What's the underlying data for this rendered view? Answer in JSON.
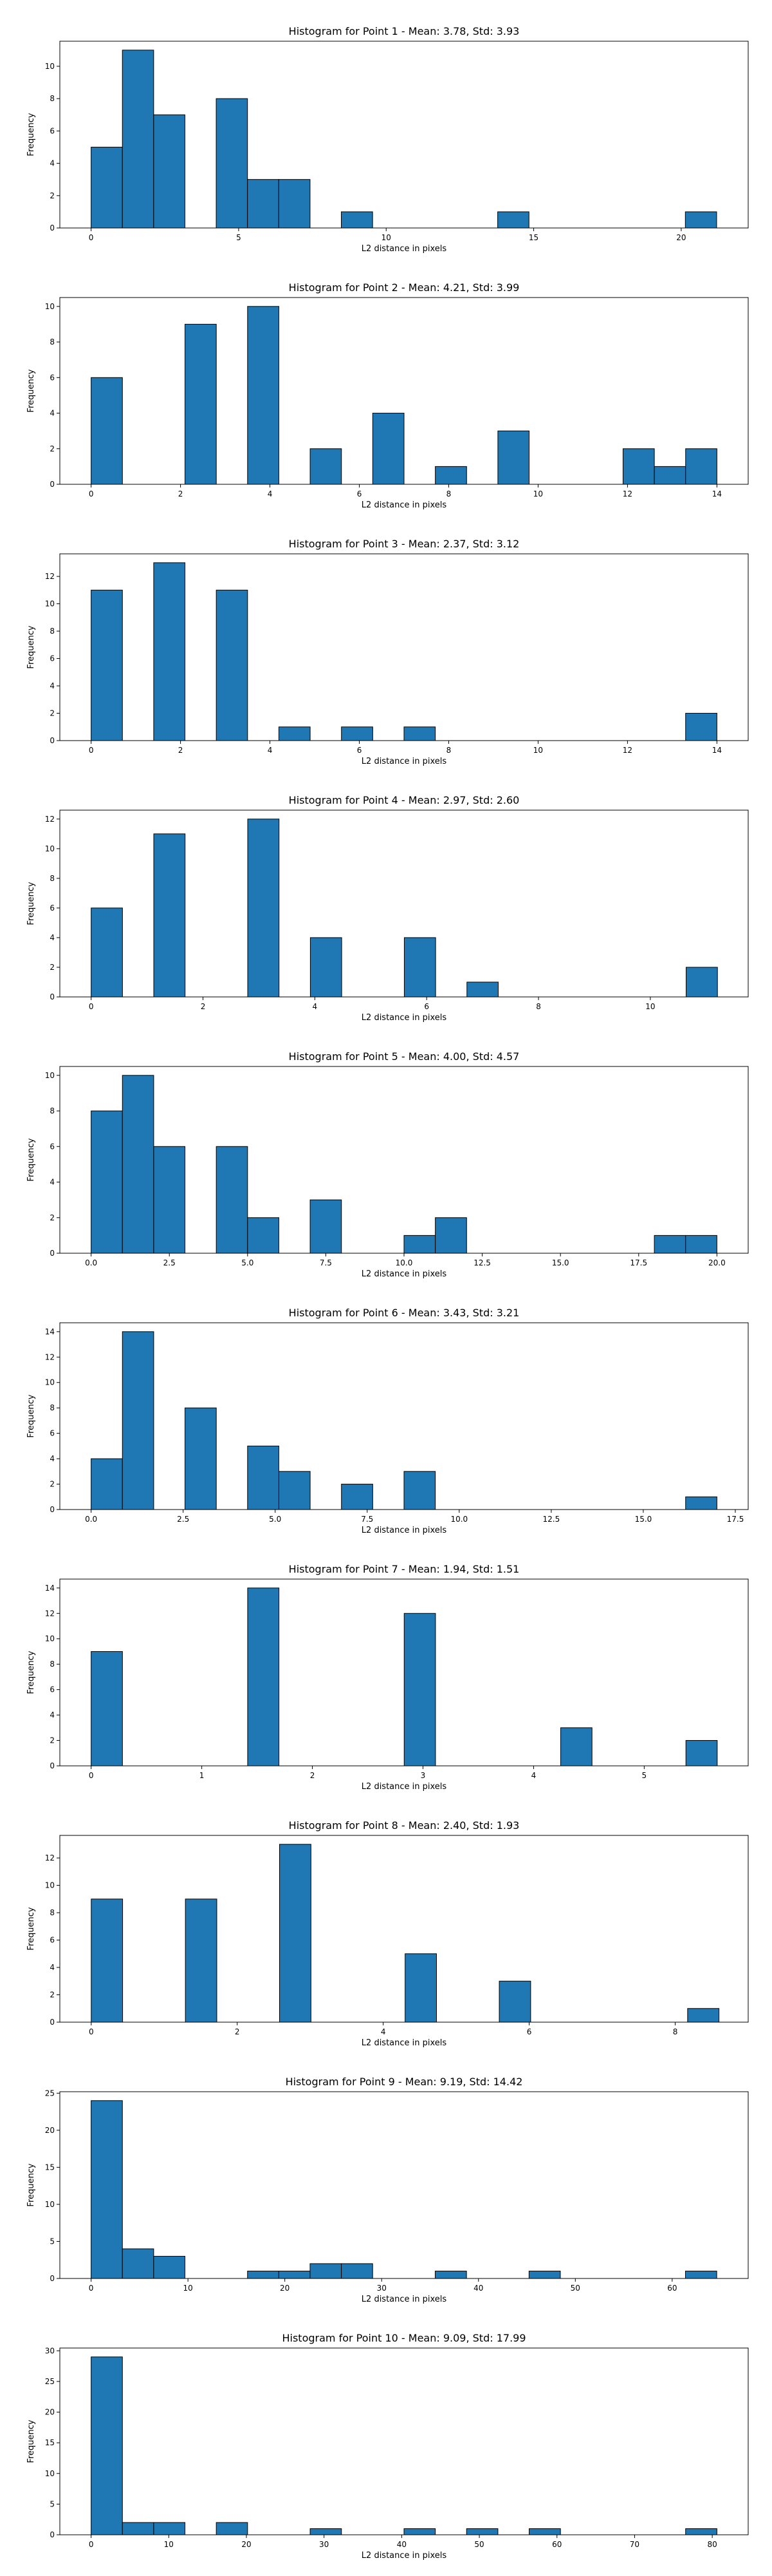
{
  "chart_data": [
    {
      "type": "bar",
      "title": "Histogram for Point 1 - Mean: 3.78, Std: 3.93",
      "xlabel": "L2 distance in pixels",
      "ylabel": "Frequency",
      "xlim": [
        -1.06,
        22.27
      ],
      "ylim": [
        0,
        11.55
      ],
      "xticks": [
        0,
        5,
        10,
        15,
        20
      ],
      "yticks": [
        0,
        2,
        4,
        6,
        8,
        10
      ],
      "bin_edges": [
        0,
        1.06,
        2.12,
        3.18,
        4.24,
        5.3,
        6.36,
        7.42,
        8.48,
        9.54,
        10.6,
        11.66,
        12.72,
        13.78,
        14.84,
        15.9,
        16.96,
        18.02,
        19.08,
        20.14,
        21.2
      ],
      "counts": [
        5,
        11,
        7,
        0,
        8,
        3,
        3,
        0,
        1,
        0,
        0,
        0,
        0,
        1,
        0,
        0,
        0,
        0,
        0,
        1
      ]
    },
    {
      "type": "bar",
      "title": "Histogram for Point 2 - Mean: 4.21, Std: 3.99",
      "xlabel": "L2 distance in pixels",
      "ylabel": "Frequency",
      "xlim": [
        -0.7,
        14.7
      ],
      "ylim": [
        0,
        10.5
      ],
      "xticks": [
        0,
        2,
        4,
        6,
        8,
        10,
        12,
        14
      ],
      "yticks": [
        0,
        2,
        4,
        6,
        8,
        10
      ],
      "bin_edges": [
        0,
        0.7,
        1.4,
        2.1,
        2.8,
        3.5,
        4.2,
        4.9,
        5.6,
        6.3,
        7.0,
        7.7,
        8.4,
        9.1,
        9.8,
        10.5,
        11.2,
        11.9,
        12.6,
        13.3,
        14.0
      ],
      "counts": [
        6,
        0,
        0,
        9,
        0,
        10,
        0,
        2,
        0,
        4,
        0,
        1,
        0,
        3,
        0,
        0,
        0,
        2,
        1,
        2
      ]
    },
    {
      "type": "bar",
      "title": "Histogram for Point 3 - Mean: 2.37, Std: 3.12",
      "xlabel": "L2 distance in pixels",
      "ylabel": "Frequency",
      "xlim": [
        -0.7,
        14.7
      ],
      "ylim": [
        0,
        13.65
      ],
      "xticks": [
        0,
        2,
        4,
        6,
        8,
        10,
        12,
        14
      ],
      "yticks": [
        0,
        2,
        4,
        6,
        8,
        10,
        12
      ],
      "bin_edges": [
        0,
        0.7,
        1.4,
        2.1,
        2.8,
        3.5,
        4.2,
        4.9,
        5.6,
        6.3,
        7.0,
        7.7,
        8.4,
        9.1,
        9.8,
        10.5,
        11.2,
        11.9,
        12.6,
        13.3,
        14.0
      ],
      "counts": [
        11,
        0,
        13,
        0,
        11,
        0,
        1,
        0,
        1,
        0,
        1,
        0,
        0,
        0,
        0,
        0,
        0,
        0,
        0,
        2
      ]
    },
    {
      "type": "bar",
      "title": "Histogram for Point 4 - Mean: 2.97, Std: 2.60",
      "xlabel": "L2 distance in pixels",
      "ylabel": "Frequency",
      "xlim": [
        -0.56,
        11.75
      ],
      "ylim": [
        0,
        12.6
      ],
      "xticks": [
        0,
        2,
        4,
        6,
        8,
        10
      ],
      "yticks": [
        0,
        2,
        4,
        6,
        8,
        10,
        12
      ],
      "bin_edges": [
        0,
        0.56,
        1.12,
        1.68,
        2.24,
        2.8,
        3.36,
        3.92,
        4.48,
        5.04,
        5.6,
        6.16,
        6.72,
        7.28,
        7.84,
        8.4,
        8.96,
        9.52,
        10.08,
        10.64,
        11.2
      ],
      "counts": [
        6,
        0,
        11,
        0,
        0,
        12,
        0,
        4,
        0,
        0,
        4,
        0,
        1,
        0,
        0,
        0,
        0,
        0,
        0,
        2
      ]
    },
    {
      "type": "bar",
      "title": "Histogram for Point 5 - Mean: 4.00, Std: 4.57",
      "xlabel": "L2 distance in pixels",
      "ylabel": "Frequency",
      "xlim": [
        -1.0,
        21.0
      ],
      "ylim": [
        0,
        10.5
      ],
      "xticks": [
        "0.0",
        "2.5",
        "5.0",
        "7.5",
        "10.0",
        "12.5",
        "15.0",
        "17.5",
        "20.0"
      ],
      "yticks": [
        0,
        2,
        4,
        6,
        8,
        10
      ],
      "bin_edges": [
        0,
        1,
        2,
        3,
        4,
        5,
        6,
        7,
        8,
        9,
        10,
        11,
        12,
        13,
        14,
        15,
        16,
        17,
        18,
        19,
        20
      ],
      "counts": [
        8,
        10,
        6,
        0,
        6,
        2,
        0,
        3,
        0,
        0,
        1,
        2,
        0,
        0,
        0,
        0,
        0,
        0,
        1,
        1
      ]
    },
    {
      "type": "bar",
      "title": "Histogram for Point 6 - Mean: 3.43, Std: 3.21",
      "xlabel": "L2 distance in pixels",
      "ylabel": "Frequency",
      "xlim": [
        -0.85,
        17.85
      ],
      "ylim": [
        0,
        14.7
      ],
      "xticks": [
        "0.0",
        "2.5",
        "5.0",
        "7.5",
        "10.0",
        "12.5",
        "15.0",
        "17.5"
      ],
      "yticks": [
        0,
        2,
        4,
        6,
        8,
        10,
        12,
        14
      ],
      "bin_edges": [
        0,
        0.85,
        1.7,
        2.55,
        3.4,
        4.25,
        5.1,
        5.95,
        6.8,
        7.65,
        8.5,
        9.35,
        10.2,
        11.05,
        11.9,
        12.75,
        13.6,
        14.45,
        15.3,
        16.15,
        17.0
      ],
      "counts": [
        4,
        14,
        0,
        8,
        0,
        5,
        3,
        0,
        2,
        0,
        3,
        0,
        0,
        0,
        0,
        0,
        0,
        0,
        0,
        1
      ]
    },
    {
      "type": "bar",
      "title": "Histogram for Point 7 - Mean: 1.94, Std: 1.51",
      "xlabel": "L2 distance in pixels",
      "ylabel": "Frequency",
      "xlim": [
        -0.283,
        5.94
      ],
      "ylim": [
        0,
        14.7
      ],
      "xticks": [
        0,
        1,
        2,
        3,
        4,
        5
      ],
      "yticks": [
        0,
        2,
        4,
        6,
        8,
        10,
        12,
        14
      ],
      "bin_edges": [
        0,
        0.283,
        0.566,
        0.849,
        1.132,
        1.415,
        1.698,
        1.981,
        2.264,
        2.547,
        2.83,
        3.113,
        3.396,
        3.679,
        3.962,
        4.245,
        4.528,
        4.811,
        5.094,
        5.377,
        5.66
      ],
      "counts": [
        9,
        0,
        0,
        0,
        0,
        14,
        0,
        0,
        0,
        0,
        12,
        0,
        0,
        0,
        0,
        3,
        0,
        0,
        0,
        2
      ]
    },
    {
      "type": "bar",
      "title": "Histogram for Point 8 - Mean: 2.40, Std: 1.93",
      "xlabel": "L2 distance in pixels",
      "ylabel": "Frequency",
      "xlim": [
        -0.43,
        9.0
      ],
      "ylim": [
        0,
        13.65
      ],
      "xticks": [
        0,
        2,
        4,
        6,
        8
      ],
      "yticks": [
        0,
        2,
        4,
        6,
        8,
        10,
        12
      ],
      "bin_edges": [
        0,
        0.43,
        0.86,
        1.29,
        1.72,
        2.15,
        2.58,
        3.01,
        3.44,
        3.87,
        4.3,
        4.73,
        5.16,
        5.59,
        6.02,
        6.45,
        6.88,
        7.31,
        7.74,
        8.17,
        8.6
      ],
      "counts": [
        9,
        0,
        0,
        9,
        0,
        0,
        13,
        0,
        0,
        0,
        5,
        0,
        0,
        3,
        0,
        0,
        0,
        0,
        0,
        1
      ]
    },
    {
      "type": "bar",
      "title": "Histogram for Point 9 - Mean: 9.19, Std: 14.42",
      "xlabel": "L2 distance in pixels",
      "ylabel": "Frequency",
      "xlim": [
        -3.23,
        67.85
      ],
      "ylim": [
        0,
        25.2
      ],
      "xticks": [
        0,
        10,
        20,
        30,
        40,
        50,
        60
      ],
      "yticks": [
        0,
        5,
        10,
        15,
        20,
        25
      ],
      "bin_edges": [
        0,
        3.23,
        6.46,
        9.69,
        12.92,
        16.15,
        19.38,
        22.61,
        25.84,
        29.07,
        32.3,
        35.53,
        38.76,
        41.99,
        45.22,
        48.45,
        51.68,
        54.91,
        58.14,
        61.37,
        64.6
      ],
      "counts": [
        24,
        4,
        3,
        0,
        0,
        1,
        1,
        2,
        2,
        0,
        0,
        1,
        0,
        0,
        1,
        0,
        0,
        0,
        0,
        1
      ]
    },
    {
      "type": "bar",
      "title": "Histogram for Point 10 - Mean: 9.09, Std: 17.99",
      "xlabel": "L2 distance in pixels",
      "ylabel": "Frequency",
      "xlim": [
        -4.03,
        84.63
      ],
      "ylim": [
        0,
        30.45
      ],
      "xticks": [
        0,
        10,
        20,
        30,
        40,
        50,
        60,
        70,
        80
      ],
      "yticks": [
        0,
        5,
        10,
        15,
        20,
        25,
        30
      ],
      "bin_edges": [
        0,
        4.03,
        8.06,
        12.09,
        16.12,
        20.15,
        24.18,
        28.21,
        32.24,
        36.27,
        40.3,
        44.33,
        48.36,
        52.39,
        56.42,
        60.45,
        64.48,
        68.51,
        72.54,
        76.57,
        80.6
      ],
      "counts": [
        29,
        2,
        2,
        0,
        2,
        0,
        0,
        1,
        0,
        0,
        1,
        0,
        1,
        0,
        1,
        0,
        0,
        0,
        0,
        1
      ]
    }
  ]
}
